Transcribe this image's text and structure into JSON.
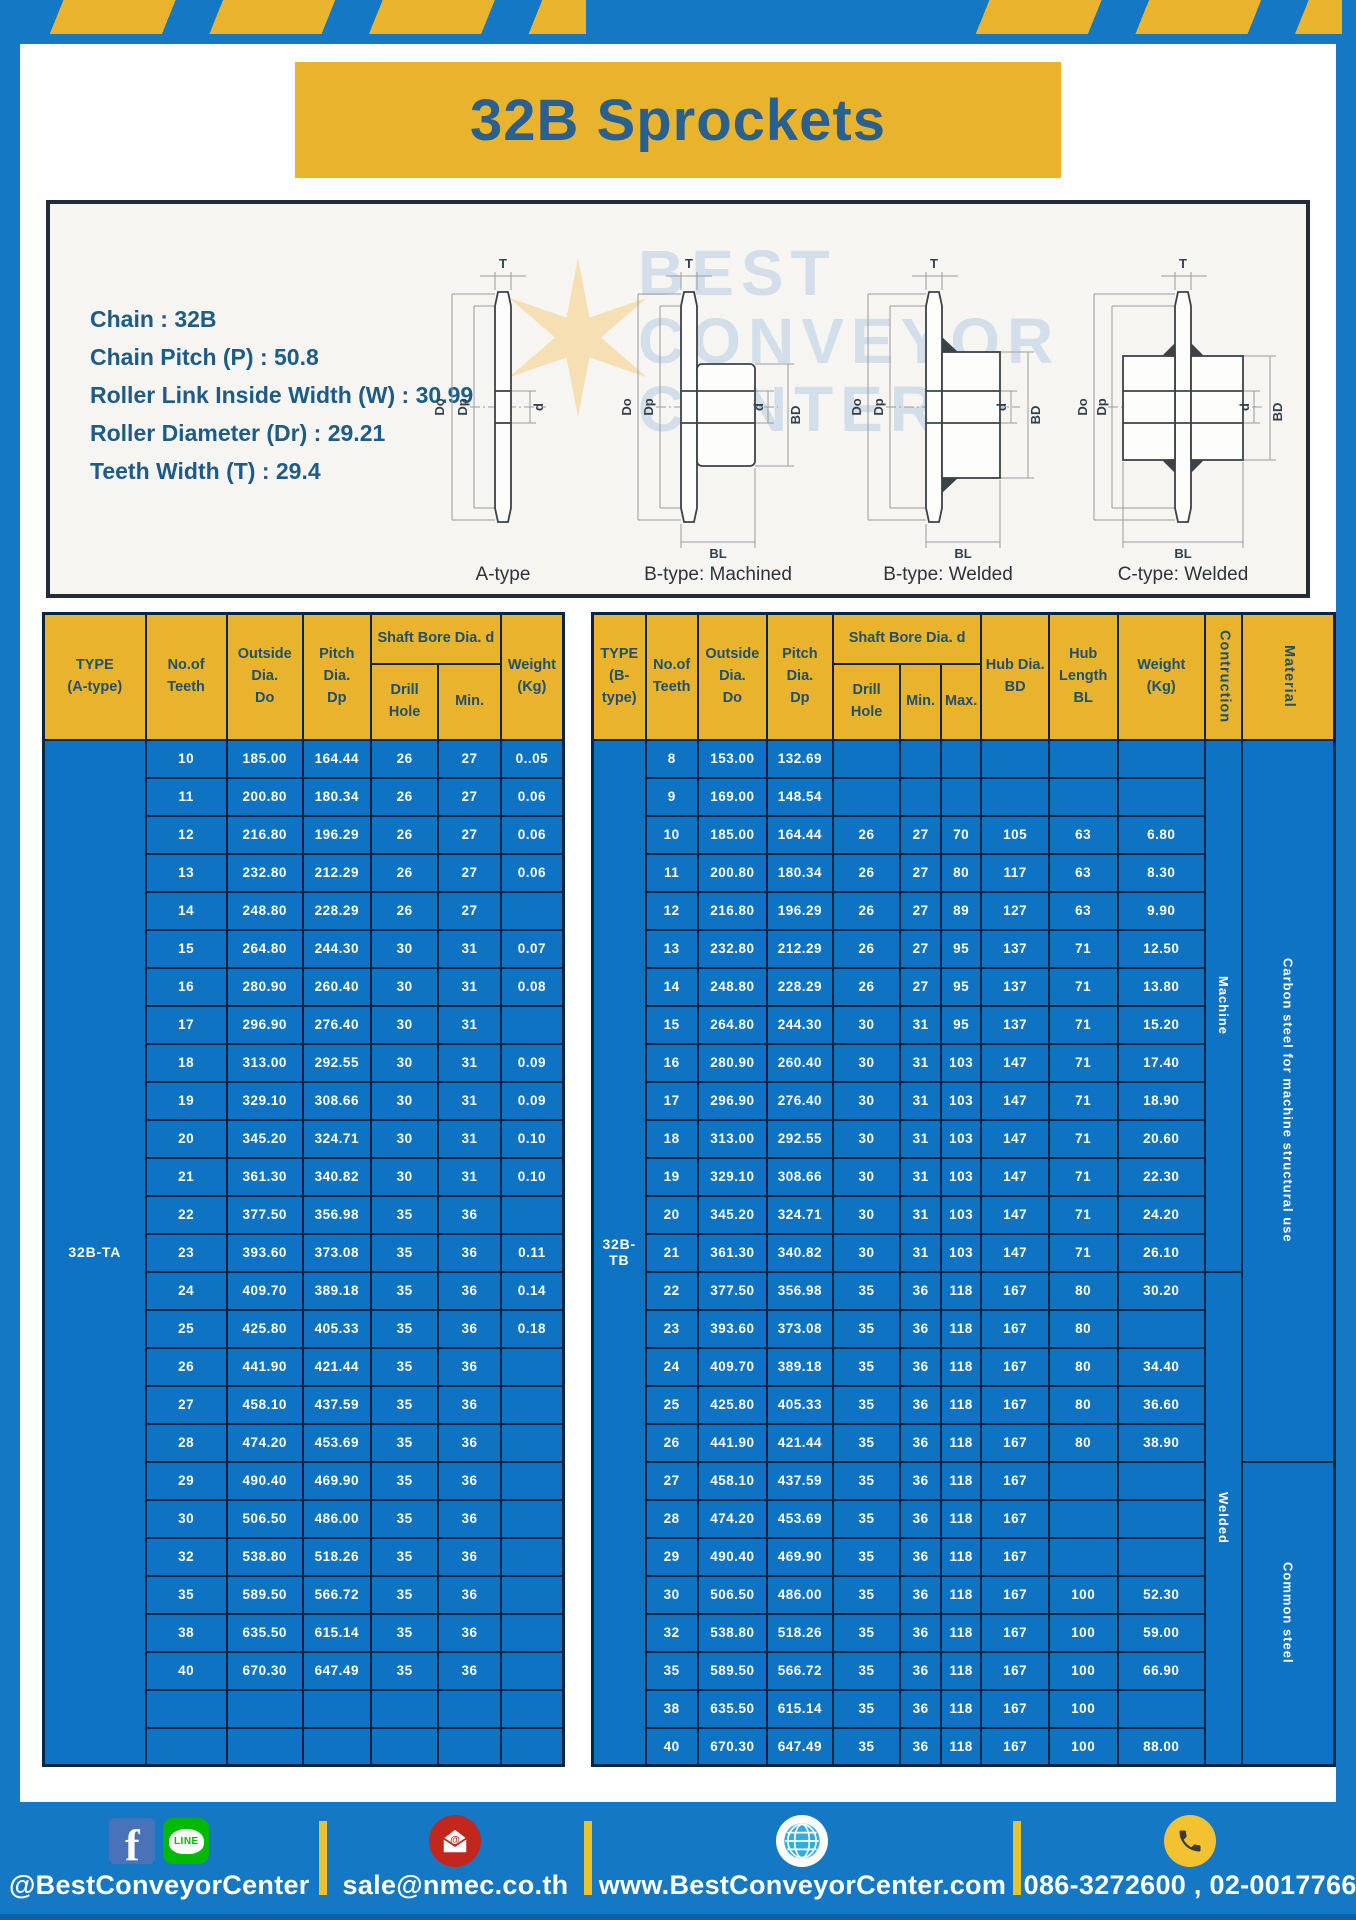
{
  "page_title": "32B Sprockets",
  "specs": [
    "Chain  : 32B",
    "Chain Pitch (P)  :  50.8",
    "Roller Link Inside Width (W)  :  30.99",
    "Roller Diameter (Dr)  : 29.21",
    "Teeth Width (T)  :  29.4"
  ],
  "diagram": {
    "types": [
      "A-type",
      "B-type: Machined",
      "B-type: Welded",
      "C-type: Welded"
    ],
    "dims": {
      "t": "T",
      "do": "Do",
      "dp": "Dp",
      "d": "d",
      "bd": "BD",
      "bl": "BL"
    },
    "watermark": [
      "BEST",
      "CONVEYOR",
      "CENTER"
    ]
  },
  "left_table": {
    "header": {
      "type": [
        "TYPE",
        "(A-type)"
      ],
      "teeth": [
        "No.of",
        "Teeth"
      ],
      "outside": [
        "Outside",
        "Dia.",
        "Do"
      ],
      "pitch": [
        "Pitch Dia.",
        "Dp"
      ],
      "shaft_bore": "Shaft Bore Dia. d",
      "drill_hole": "Drill Hole",
      "min": "Min.",
      "weight": [
        "Weight",
        "(Kg)"
      ]
    },
    "type_label": "32B-TA",
    "rows": [
      [
        "10",
        "185.00",
        "164.44",
        "26",
        "27",
        "0..05"
      ],
      [
        "11",
        "200.80",
        "180.34",
        "26",
        "27",
        "0.06"
      ],
      [
        "12",
        "216.80",
        "196.29",
        "26",
        "27",
        "0.06"
      ],
      [
        "13",
        "232.80",
        "212.29",
        "26",
        "27",
        "0.06"
      ],
      [
        "14",
        "248.80",
        "228.29",
        "26",
        "27",
        ""
      ],
      [
        "15",
        "264.80",
        "244.30",
        "30",
        "31",
        "0.07"
      ],
      [
        "16",
        "280.90",
        "260.40",
        "30",
        "31",
        "0.08"
      ],
      [
        "17",
        "296.90",
        "276.40",
        "30",
        "31",
        ""
      ],
      [
        "18",
        "313.00",
        "292.55",
        "30",
        "31",
        "0.09"
      ],
      [
        "19",
        "329.10",
        "308.66",
        "30",
        "31",
        "0.09"
      ],
      [
        "20",
        "345.20",
        "324.71",
        "30",
        "31",
        "0.10"
      ],
      [
        "21",
        "361.30",
        "340.82",
        "30",
        "31",
        "0.10"
      ],
      [
        "22",
        "377.50",
        "356.98",
        "35",
        "36",
        ""
      ],
      [
        "23",
        "393.60",
        "373.08",
        "35",
        "36",
        "0.11"
      ],
      [
        "24",
        "409.70",
        "389.18",
        "35",
        "36",
        "0.14"
      ],
      [
        "25",
        "425.80",
        "405.33",
        "35",
        "36",
        "0.18"
      ],
      [
        "26",
        "441.90",
        "421.44",
        "35",
        "36",
        ""
      ],
      [
        "27",
        "458.10",
        "437.59",
        "35",
        "36",
        ""
      ],
      [
        "28",
        "474.20",
        "453.69",
        "35",
        "36",
        ""
      ],
      [
        "29",
        "490.40",
        "469.90",
        "35",
        "36",
        ""
      ],
      [
        "30",
        "506.50",
        "486.00",
        "35",
        "36",
        ""
      ],
      [
        "32",
        "538.80",
        "518.26",
        "35",
        "36",
        ""
      ],
      [
        "35",
        "589.50",
        "566.72",
        "35",
        "36",
        ""
      ],
      [
        "38",
        "635.50",
        "615.14",
        "35",
        "36",
        ""
      ],
      [
        "40",
        "670.30",
        "647.49",
        "35",
        "36",
        ""
      ],
      [
        "",
        "",
        "",
        "",
        "",
        ""
      ],
      [
        "",
        "",
        "",
        "",
        "",
        ""
      ]
    ]
  },
  "right_table": {
    "header": {
      "type": [
        "TYPE",
        "(B-type)"
      ],
      "teeth": [
        "No.of",
        "Teeth"
      ],
      "outside": [
        "Outside",
        "Dia.",
        "Do"
      ],
      "pitch": [
        "Pitch Dia.",
        "Dp"
      ],
      "shaft_bore": "Shaft Bore Dia. d",
      "drill_hole": "Drill Hole",
      "min": "Min.",
      "max": "Max.",
      "hub_dia": [
        "Hub Dia.",
        "BD"
      ],
      "hub_length": [
        "Hub",
        "Length",
        "BL"
      ],
      "weight": [
        "Weight",
        "(Kg)"
      ],
      "contruction": "Contruction",
      "material": "Material"
    },
    "type_label": "32B-TB",
    "rows": [
      [
        "8",
        "153.00",
        "132.69",
        "",
        "",
        "",
        "",
        "",
        ""
      ],
      [
        "9",
        "169.00",
        "148.54",
        "",
        "",
        "",
        "",
        "",
        ""
      ],
      [
        "10",
        "185.00",
        "164.44",
        "26",
        "27",
        "70",
        "105",
        "63",
        "6.80"
      ],
      [
        "11",
        "200.80",
        "180.34",
        "26",
        "27",
        "80",
        "117",
        "63",
        "8.30"
      ],
      [
        "12",
        "216.80",
        "196.29",
        "26",
        "27",
        "89",
        "127",
        "63",
        "9.90"
      ],
      [
        "13",
        "232.80",
        "212.29",
        "26",
        "27",
        "95",
        "137",
        "71",
        "12.50"
      ],
      [
        "14",
        "248.80",
        "228.29",
        "26",
        "27",
        "95",
        "137",
        "71",
        "13.80"
      ],
      [
        "15",
        "264.80",
        "244.30",
        "30",
        "31",
        "95",
        "137",
        "71",
        "15.20"
      ],
      [
        "16",
        "280.90",
        "260.40",
        "30",
        "31",
        "103",
        "147",
        "71",
        "17.40"
      ],
      [
        "17",
        "296.90",
        "276.40",
        "30",
        "31",
        "103",
        "147",
        "71",
        "18.90"
      ],
      [
        "18",
        "313.00",
        "292.55",
        "30",
        "31",
        "103",
        "147",
        "71",
        "20.60"
      ],
      [
        "19",
        "329.10",
        "308.66",
        "30",
        "31",
        "103",
        "147",
        "71",
        "22.30"
      ],
      [
        "20",
        "345.20",
        "324.71",
        "30",
        "31",
        "103",
        "147",
        "71",
        "24.20"
      ],
      [
        "21",
        "361.30",
        "340.82",
        "30",
        "31",
        "103",
        "147",
        "71",
        "26.10"
      ],
      [
        "22",
        "377.50",
        "356.98",
        "35",
        "36",
        "118",
        "167",
        "80",
        "30.20"
      ],
      [
        "23",
        "393.60",
        "373.08",
        "35",
        "36",
        "118",
        "167",
        "80",
        ""
      ],
      [
        "24",
        "409.70",
        "389.18",
        "35",
        "36",
        "118",
        "167",
        "80",
        "34.40"
      ],
      [
        "25",
        "425.80",
        "405.33",
        "35",
        "36",
        "118",
        "167",
        "80",
        "36.60"
      ],
      [
        "26",
        "441.90",
        "421.44",
        "35",
        "36",
        "118",
        "167",
        "80",
        "38.90"
      ],
      [
        "27",
        "458.10",
        "437.59",
        "35",
        "36",
        "118",
        "167",
        "",
        ""
      ],
      [
        "28",
        "474.20",
        "453.69",
        "35",
        "36",
        "118",
        "167",
        "",
        ""
      ],
      [
        "29",
        "490.40",
        "469.90",
        "35",
        "36",
        "118",
        "167",
        "",
        ""
      ],
      [
        "30",
        "506.50",
        "486.00",
        "35",
        "36",
        "118",
        "167",
        "100",
        "52.30"
      ],
      [
        "32",
        "538.80",
        "518.26",
        "35",
        "36",
        "118",
        "167",
        "100",
        "59.00"
      ],
      [
        "35",
        "589.50",
        "566.72",
        "35",
        "36",
        "118",
        "167",
        "100",
        "66.90"
      ],
      [
        "38",
        "635.50",
        "615.14",
        "35",
        "36",
        "118",
        "167",
        "100",
        ""
      ],
      [
        "40",
        "670.30",
        "647.49",
        "35",
        "36",
        "118",
        "167",
        "100",
        "88.00"
      ]
    ],
    "construction_groups": [
      {
        "label": "Machine",
        "rowspan": 14
      },
      {
        "label": "Welded",
        "rowspan": 13
      }
    ],
    "material_groups": [
      {
        "label": "Carbon steel for machine structural use",
        "rowspan": 19
      },
      {
        "label": "Common steel",
        "rowspan": 8
      }
    ]
  },
  "footer": {
    "line_icon_text": "LINE",
    "items": [
      {
        "text": "@BestConveyorCenter"
      },
      {
        "text": "sale@nmec.co.th"
      },
      {
        "text": "www.BestConveyorCenter.com"
      },
      {
        "text": "086-3272600 , 02-0017766"
      }
    ]
  }
}
